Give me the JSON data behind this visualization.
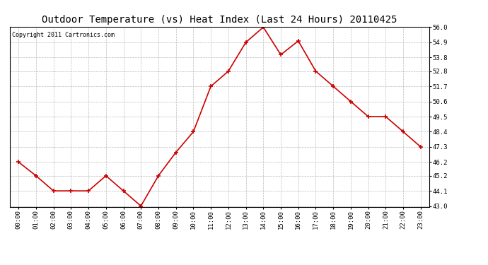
{
  "title": "Outdoor Temperature (vs) Heat Index (Last 24 Hours) 20110425",
  "copyright": "Copyright 2011 Cartronics.com",
  "x_labels": [
    "00:00",
    "01:00",
    "02:00",
    "03:00",
    "04:00",
    "05:00",
    "06:00",
    "07:00",
    "08:00",
    "09:00",
    "10:00",
    "11:00",
    "12:00",
    "13:00",
    "14:00",
    "15:00",
    "16:00",
    "17:00",
    "18:00",
    "19:00",
    "20:00",
    "21:00",
    "22:00",
    "23:00"
  ],
  "y_values": [
    46.2,
    45.2,
    44.1,
    44.1,
    44.1,
    45.2,
    44.1,
    43.0,
    45.2,
    46.9,
    48.4,
    51.7,
    52.8,
    54.9,
    56.0,
    54.0,
    55.0,
    52.8,
    51.7,
    50.6,
    49.5,
    49.5,
    48.4,
    47.3
  ],
  "line_color": "#cc0000",
  "marker": "+",
  "marker_color": "#cc0000",
  "bg_color": "#ffffff",
  "grid_color": "#bbbbbb",
  "title_fontsize": 10,
  "copyright_fontsize": 6,
  "tick_fontsize": 6.5,
  "ytick_labels": [
    43.0,
    44.1,
    45.2,
    46.2,
    47.3,
    48.4,
    49.5,
    50.6,
    51.7,
    52.8,
    53.8,
    54.9,
    56.0
  ],
  "ylim_min": 43.0,
  "ylim_max": 56.0
}
